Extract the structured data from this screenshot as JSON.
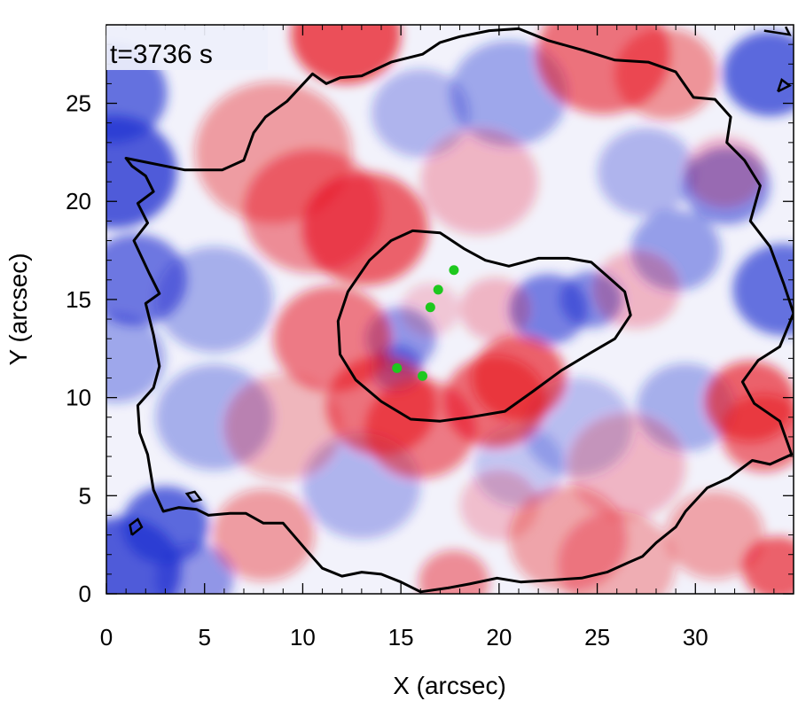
{
  "chart_data": {
    "type": "heatmap",
    "description_unit": "arcsec",
    "time_label": "t=3736 s",
    "xlabel": "X (arcsec)",
    "ylabel": "Y (arcsec)",
    "xlim": [
      0,
      35
    ],
    "ylim": [
      0,
      29
    ],
    "x_ticks": [
      0,
      5,
      10,
      15,
      20,
      25,
      30
    ],
    "y_ticks": [
      0,
      5,
      10,
      15,
      20,
      25
    ],
    "x_tick_labels": [
      "0",
      "5",
      "10",
      "15",
      "20",
      "25",
      "30"
    ],
    "y_tick_labels": [
      "0",
      "5",
      "10",
      "15",
      "20",
      "25"
    ],
    "colormap": {
      "negative": "#1f2fd0",
      "zero": "#ffffff",
      "positive": "#e8141e"
    },
    "inner_contour_color": "#000000",
    "outer_contour_color": "#000000",
    "green_points": [
      {
        "x": 14.8,
        "y": 11.5
      },
      {
        "x": 16.1,
        "y": 11.1
      },
      {
        "x": 16.5,
        "y": 14.6
      },
      {
        "x": 16.9,
        "y": 15.5
      },
      {
        "x": 17.7,
        "y": 16.5
      }
    ],
    "green_color": "#1ec81e",
    "inner_contour": [
      [
        20.5,
        16.7
      ],
      [
        22.0,
        17.1
      ],
      [
        23.5,
        17.1
      ],
      [
        24.7,
        16.9
      ],
      [
        25.5,
        16.2
      ],
      [
        26.4,
        15.4
      ],
      [
        26.7,
        14.2
      ],
      [
        25.9,
        13.0
      ],
      [
        24.7,
        12.3
      ],
      [
        23.2,
        11.4
      ],
      [
        21.7,
        10.3
      ],
      [
        20.3,
        9.3
      ],
      [
        18.5,
        9.0
      ],
      [
        17.0,
        8.8
      ],
      [
        15.5,
        8.9
      ],
      [
        14.0,
        9.8
      ],
      [
        12.7,
        10.9
      ],
      [
        11.9,
        12.2
      ],
      [
        11.8,
        13.9
      ],
      [
        12.3,
        15.4
      ],
      [
        13.4,
        17.0
      ],
      [
        14.5,
        18.0
      ],
      [
        15.6,
        18.5
      ],
      [
        17.0,
        18.4
      ],
      [
        18.2,
        17.6
      ],
      [
        19.3,
        17.0
      ]
    ],
    "outer_contour": [
      [
        1.0,
        22.2
      ],
      [
        4.0,
        21.6
      ],
      [
        5.9,
        21.6
      ],
      [
        7.0,
        22.1
      ],
      [
        7.5,
        23.5
      ],
      [
        8.1,
        24.3
      ],
      [
        9.2,
        25.1
      ],
      [
        10.5,
        26.5
      ],
      [
        11.2,
        26.0
      ],
      [
        11.9,
        26.3
      ],
      [
        13.0,
        26.4
      ],
      [
        14.5,
        27.1
      ],
      [
        16.1,
        27.5
      ],
      [
        17.0,
        28.1
      ],
      [
        18.0,
        28.4
      ],
      [
        19.5,
        28.7
      ],
      [
        21.0,
        28.8
      ],
      [
        22.5,
        28.2
      ],
      [
        24.3,
        27.7
      ],
      [
        25.9,
        27.2
      ],
      [
        27.6,
        27.1
      ],
      [
        29.0,
        26.6
      ],
      [
        29.9,
        25.3
      ],
      [
        31.0,
        25.2
      ],
      [
        31.8,
        24.3
      ],
      [
        31.6,
        23.0
      ],
      [
        32.5,
        22.1
      ],
      [
        33.3,
        20.8
      ],
      [
        32.8,
        19.0
      ],
      [
        33.8,
        17.7
      ],
      [
        34.5,
        15.8
      ],
      [
        35.0,
        14.3
      ],
      [
        34.3,
        12.6
      ],
      [
        33.2,
        11.9
      ],
      [
        32.4,
        10.8
      ],
      [
        33.0,
        9.7
      ],
      [
        34.3,
        8.8
      ],
      [
        34.9,
        7.1
      ],
      [
        33.8,
        6.6
      ],
      [
        32.9,
        6.8
      ],
      [
        31.7,
        5.9
      ],
      [
        30.6,
        5.4
      ],
      [
        29.5,
        4.2
      ],
      [
        29.0,
        3.4
      ],
      [
        28.0,
        2.6
      ],
      [
        27.3,
        1.9
      ],
      [
        26.6,
        1.6
      ],
      [
        25.5,
        1.1
      ],
      [
        24.2,
        0.8
      ],
      [
        22.7,
        0.7
      ],
      [
        21.1,
        0.6
      ],
      [
        19.9,
        0.8
      ],
      [
        18.5,
        0.5
      ],
      [
        17.4,
        0.3
      ],
      [
        16.0,
        0.1
      ],
      [
        15.0,
        0.6
      ],
      [
        14.0,
        1.0
      ],
      [
        13.0,
        1.1
      ],
      [
        12.0,
        0.9
      ],
      [
        11.0,
        1.3
      ],
      [
        10.2,
        2.2
      ],
      [
        9.0,
        3.6
      ],
      [
        8.0,
        3.6
      ],
      [
        7.1,
        4.1
      ],
      [
        6.3,
        4.1
      ],
      [
        5.2,
        4.0
      ],
      [
        4.6,
        4.3
      ],
      [
        3.7,
        4.4
      ],
      [
        2.9,
        4.2
      ],
      [
        2.4,
        5.3
      ],
      [
        2.1,
        7.1
      ],
      [
        1.7,
        8.2
      ],
      [
        1.6,
        9.6
      ],
      [
        2.4,
        10.5
      ],
      [
        2.7,
        11.6
      ],
      [
        2.4,
        13.2
      ],
      [
        2.0,
        14.8
      ],
      [
        2.7,
        15.3
      ],
      [
        2.2,
        16.3
      ],
      [
        1.4,
        18.0
      ],
      [
        2.1,
        18.9
      ],
      [
        1.6,
        19.9
      ],
      [
        2.4,
        20.5
      ],
      [
        2.0,
        21.3
      ],
      [
        1.3,
        21.8
      ]
    ],
    "small_contours": [
      [
        [
          4.4,
          4.7
        ],
        [
          4.8,
          4.8
        ],
        [
          4.5,
          5.2
        ],
        [
          4.1,
          5.1
        ],
        [
          4.4,
          4.7
        ]
      ],
      [
        [
          1.3,
          3.0
        ],
        [
          1.8,
          3.4
        ],
        [
          1.6,
          3.8
        ],
        [
          1.2,
          3.5
        ],
        [
          1.3,
          3.0
        ]
      ],
      [
        [
          33.5,
          28.7
        ],
        [
          34.8,
          28.5
        ],
        [
          34.6,
          28.9
        ]
      ],
      [
        [
          34.2,
          25.6
        ],
        [
          34.8,
          25.9
        ],
        [
          34.4,
          26.2
        ],
        [
          34.2,
          25.6
        ]
      ]
    ],
    "red_blobs": [
      {
        "x": 12.2,
        "y": 28.5,
        "s": 2.8,
        "a": 1.0
      },
      {
        "x": 13.2,
        "y": 18.6,
        "s": 3.2,
        "a": 0.9
      },
      {
        "x": 11.5,
        "y": 13.0,
        "s": 3.0,
        "a": 0.75
      },
      {
        "x": 14.0,
        "y": 9.6,
        "s": 2.8,
        "a": 0.8
      },
      {
        "x": 16.0,
        "y": 8.4,
        "s": 2.8,
        "a": 0.75
      },
      {
        "x": 19.8,
        "y": 9.8,
        "s": 2.6,
        "a": 0.85
      },
      {
        "x": 21.0,
        "y": 11.0,
        "s": 2.4,
        "a": 0.9
      },
      {
        "x": 25.3,
        "y": 27.5,
        "s": 3.4,
        "a": 0.8
      },
      {
        "x": 28.5,
        "y": 26.5,
        "s": 2.6,
        "a": 0.6
      },
      {
        "x": 8.5,
        "y": 22.5,
        "s": 4.0,
        "a": 0.55
      },
      {
        "x": 10.5,
        "y": 19.5,
        "s": 3.5,
        "a": 0.65
      },
      {
        "x": 19.0,
        "y": 21.0,
        "s": 3.0,
        "a": 0.35
      },
      {
        "x": 9.0,
        "y": 8.5,
        "s": 3.0,
        "a": 0.4
      },
      {
        "x": 32.8,
        "y": 9.8,
        "s": 2.3,
        "a": 0.9
      },
      {
        "x": 33.5,
        "y": 8.2,
        "s": 2.2,
        "a": 0.8
      },
      {
        "x": 26.5,
        "y": 6.5,
        "s": 3.0,
        "a": 0.35
      },
      {
        "x": 23.5,
        "y": 2.8,
        "s": 3.0,
        "a": 0.5
      },
      {
        "x": 26.0,
        "y": 1.5,
        "s": 3.0,
        "a": 0.45
      },
      {
        "x": 34.2,
        "y": 1.3,
        "s": 1.8,
        "a": 0.9
      },
      {
        "x": 31.0,
        "y": 3.0,
        "s": 2.5,
        "a": 0.5
      },
      {
        "x": 8.0,
        "y": 3.0,
        "s": 2.6,
        "a": 0.55
      },
      {
        "x": 17.7,
        "y": 0.6,
        "s": 1.8,
        "a": 0.65
      },
      {
        "x": 16.5,
        "y": 14.5,
        "s": 1.5,
        "a": 0.25
      },
      {
        "x": 19.8,
        "y": 14.5,
        "s": 1.8,
        "a": 0.35
      },
      {
        "x": 27.0,
        "y": 15.5,
        "s": 2.2,
        "a": 0.35
      },
      {
        "x": 20.0,
        "y": 4.5,
        "s": 2.0,
        "a": 0.3
      },
      {
        "x": 31.5,
        "y": 21.5,
        "s": 2.0,
        "a": 0.35
      }
    ],
    "blue_blobs": [
      {
        "x": 0.4,
        "y": 21.5,
        "s": 3.2,
        "a": 1.0
      },
      {
        "x": 0.3,
        "y": 25.5,
        "s": 2.8,
        "a": 0.85
      },
      {
        "x": 1.5,
        "y": 16.0,
        "s": 2.6,
        "a": 0.8
      },
      {
        "x": 0.5,
        "y": 12.0,
        "s": 2.5,
        "a": 0.5
      },
      {
        "x": 0.8,
        "y": 1.2,
        "s": 3.0,
        "a": 1.0
      },
      {
        "x": 3.0,
        "y": 3.5,
        "s": 2.2,
        "a": 0.9
      },
      {
        "x": 4.5,
        "y": 0.8,
        "s": 2.0,
        "a": 0.6
      },
      {
        "x": 33.8,
        "y": 26.5,
        "s": 2.4,
        "a": 0.9
      },
      {
        "x": 34.5,
        "y": 15.5,
        "s": 2.6,
        "a": 0.85
      },
      {
        "x": 31.6,
        "y": 20.8,
        "s": 2.2,
        "a": 0.7
      },
      {
        "x": 29.0,
        "y": 17.5,
        "s": 2.3,
        "a": 0.55
      },
      {
        "x": 22.5,
        "y": 14.5,
        "s": 2.0,
        "a": 0.75
      },
      {
        "x": 24.7,
        "y": 15.0,
        "s": 1.6,
        "a": 0.7
      },
      {
        "x": 15.0,
        "y": 13.0,
        "s": 1.8,
        "a": 0.6
      },
      {
        "x": 14.8,
        "y": 11.5,
        "s": 1.3,
        "a": 0.7
      },
      {
        "x": 20.5,
        "y": 25.5,
        "s": 3.0,
        "a": 0.5
      },
      {
        "x": 16.0,
        "y": 24.5,
        "s": 2.5,
        "a": 0.4
      },
      {
        "x": 27.5,
        "y": 21.5,
        "s": 2.5,
        "a": 0.4
      },
      {
        "x": 5.5,
        "y": 15.0,
        "s": 3.0,
        "a": 0.45
      },
      {
        "x": 5.5,
        "y": 9.0,
        "s": 3.0,
        "a": 0.45
      },
      {
        "x": 13.0,
        "y": 5.5,
        "s": 3.0,
        "a": 0.4
      },
      {
        "x": 24.0,
        "y": 8.5,
        "s": 2.8,
        "a": 0.35
      },
      {
        "x": 29.5,
        "y": 9.5,
        "s": 2.5,
        "a": 0.45
      },
      {
        "x": 21.0,
        "y": 6.5,
        "s": 2.3,
        "a": 0.3
      }
    ]
  }
}
